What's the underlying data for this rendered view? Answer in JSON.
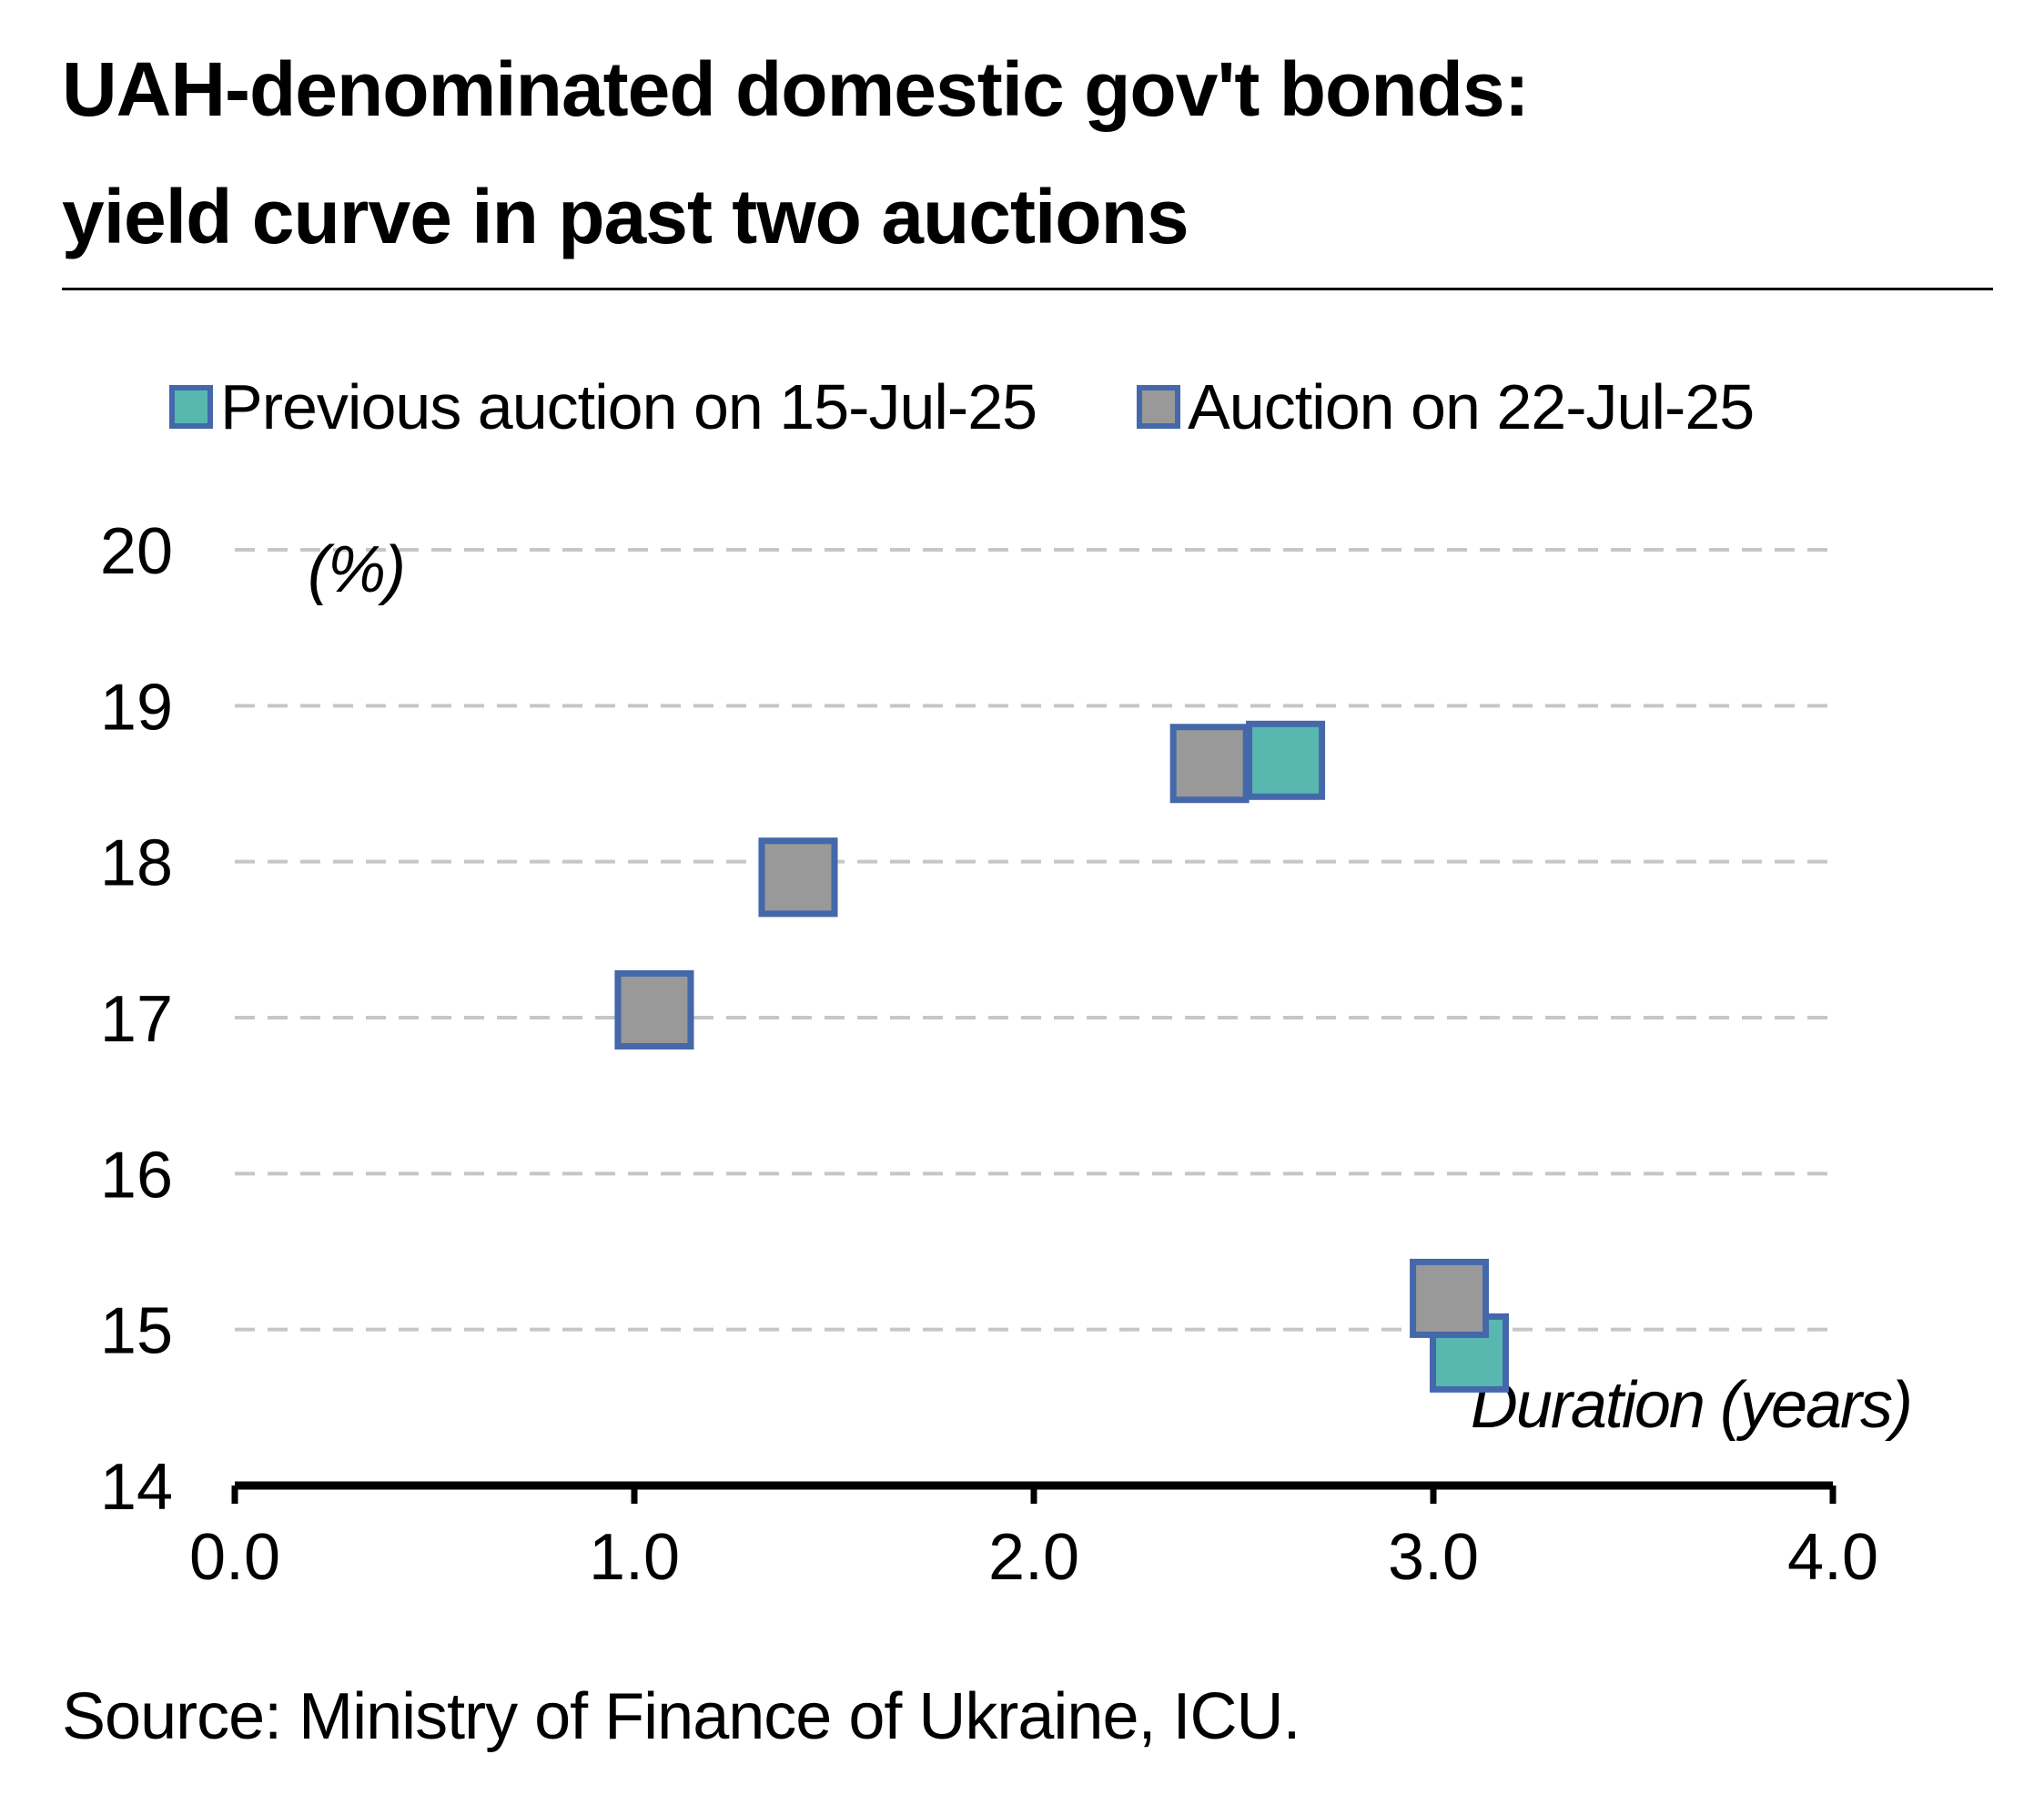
{
  "title_line1": "UAH-denominated domestic gov't bonds:",
  "title_line2": "yield curve in past two auctions",
  "source": "Source: Ministry of Finance of Ukraine, ICU.",
  "colors": {
    "previous_fill": "#58B8B0",
    "current_fill": "#999999",
    "marker_border": "#4468AA",
    "grid": "#C6C6C6",
    "axis": "#000000"
  },
  "chart_data": {
    "type": "scatter",
    "title": "UAH-denominated domestic gov't bonds: yield curve in past two auctions",
    "xlabel": "Duration (years)",
    "ylabel": "(%)",
    "xlim": [
      0,
      4
    ],
    "ylim": [
      14,
      20
    ],
    "x_ticks": [
      "0.0",
      "1.0",
      "2.0",
      "3.0",
      "4.0"
    ],
    "y_ticks": [
      "14",
      "15",
      "16",
      "17",
      "18",
      "19",
      "20"
    ],
    "grid": "horizontal dashed",
    "legend_position": "top",
    "marker": "square",
    "series": [
      {
        "name": "Previous auction on 15-Jul-25",
        "color": "#58B8B0",
        "points": [
          {
            "x": 1.05,
            "y": 17.05
          },
          {
            "x": 1.41,
            "y": 17.9
          },
          {
            "x": 2.63,
            "y": 18.65
          },
          {
            "x": 3.09,
            "y": 14.85
          }
        ]
      },
      {
        "name": "Auction on 22-Jul-25",
        "color": "#999999",
        "points": [
          {
            "x": 1.05,
            "y": 17.05
          },
          {
            "x": 1.41,
            "y": 17.9
          },
          {
            "x": 2.44,
            "y": 18.63
          },
          {
            "x": 3.04,
            "y": 15.2
          }
        ]
      }
    ]
  }
}
